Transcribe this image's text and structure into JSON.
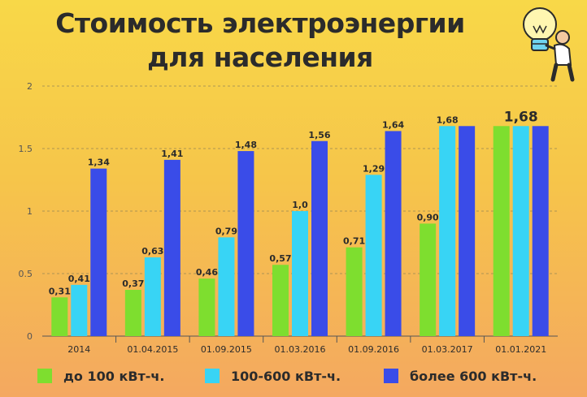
{
  "header": {
    "title_line1": "Стоимость электроэнергии",
    "title_line2": "для населения"
  },
  "colors": {
    "series": [
      "#7ede2f",
      "#38d4f5",
      "#3a4ce8"
    ],
    "grid": "#9c8a55",
    "axis": "#555555",
    "text": "#2b2b2b"
  },
  "chart_data": {
    "type": "bar",
    "title": "Стоимость электроэнергии для населения",
    "xlabel": "",
    "ylabel": "",
    "ylim": [
      0,
      2
    ],
    "yticks": [
      "0",
      "0.5",
      "1",
      "1.5",
      "2"
    ],
    "grid": true,
    "legend_position": "bottom",
    "categories": [
      "2014",
      "01.04.2015",
      "01.09.2015",
      "01.03.2016",
      "01.09.2016",
      "01.03.2017",
      "01.01.2021"
    ],
    "series": [
      {
        "name": "до 100 кВт-ч.",
        "values": [
          0.31,
          0.37,
          0.46,
          0.57,
          0.71,
          0.9,
          1.68
        ],
        "labels": [
          "0,31",
          "0,37",
          "0,46",
          "0,57",
          "0,71",
          "0,90",
          ""
        ]
      },
      {
        "name": "100-600 кВт-ч.",
        "values": [
          0.41,
          0.63,
          0.79,
          1.0,
          1.29,
          1.68,
          1.68
        ],
        "labels": [
          "0,41",
          "0,63",
          "0,79",
          "1,0",
          "1,29",
          "1,68",
          "1,68"
        ]
      },
      {
        "name": "более 600 кВт-ч.",
        "values": [
          1.34,
          1.41,
          1.48,
          1.56,
          1.64,
          1.68,
          1.68
        ],
        "labels": [
          "1,34",
          "1,41",
          "1,48",
          "1,56",
          "1,64",
          "",
          ""
        ]
      }
    ]
  }
}
